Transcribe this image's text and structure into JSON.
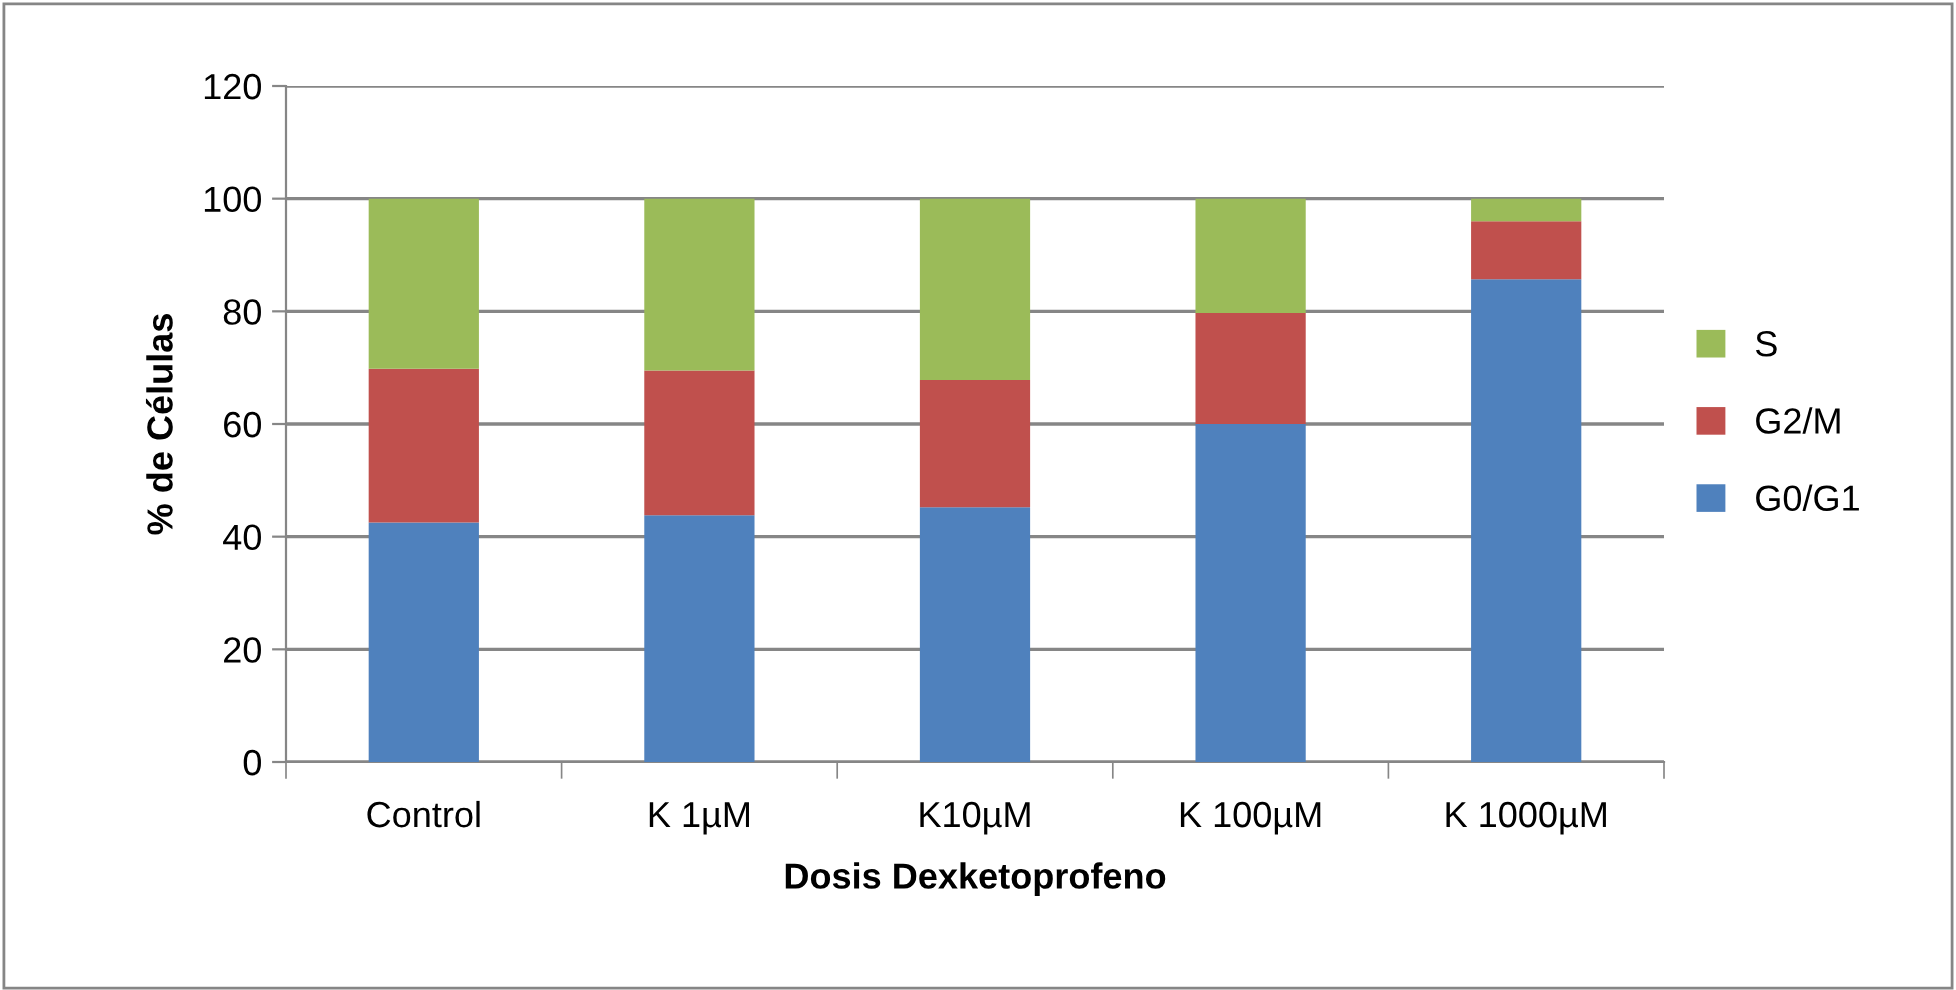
{
  "chart_data": {
    "type": "bar",
    "stacked": true,
    "xlabel": "Dosis Dexketoprofeno",
    "ylabel": "% de Células",
    "categories": [
      "Control",
      "K 1µM",
      "K10µM",
      "K 100µM",
      "K 1000µM"
    ],
    "series": [
      {
        "name": "G0/G1",
        "color": "#4f81bd",
        "values": [
          42.5,
          43.8,
          45.2,
          60.0,
          85.7
        ]
      },
      {
        "name": "G2/M",
        "color": "#c0504d",
        "values": [
          27.3,
          25.7,
          22.6,
          19.7,
          10.3
        ]
      },
      {
        "name": "S",
        "color": "#9bbb59",
        "values": [
          30.2,
          30.5,
          32.2,
          20.3,
          4.0
        ]
      }
    ],
    "ylim": [
      0,
      120
    ],
    "yticks": [
      0,
      20,
      40,
      60,
      80,
      100,
      120
    ],
    "grid": "y",
    "legend": "right"
  }
}
